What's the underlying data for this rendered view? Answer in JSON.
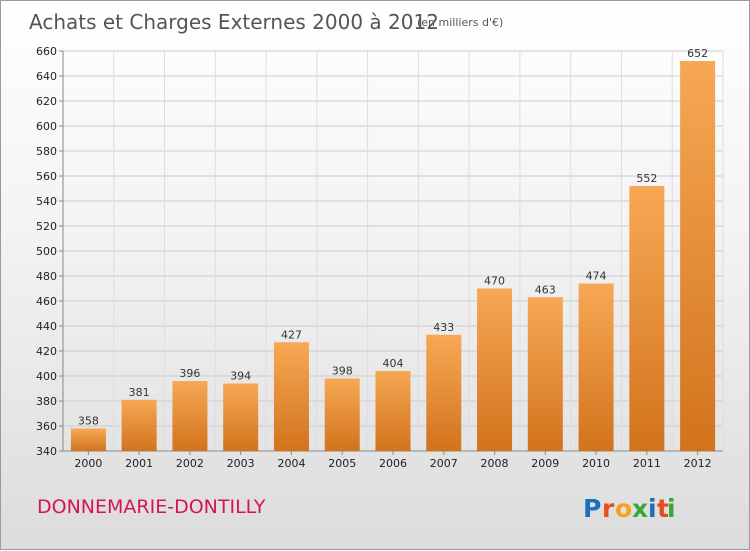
{
  "chart_data": {
    "type": "bar",
    "title": "Achats et Charges Externes 2000 à 2012",
    "subtitle": "(en milliers d'€)",
    "categories": [
      "2000",
      "2001",
      "2002",
      "2003",
      "2004",
      "2005",
      "2006",
      "2007",
      "2008",
      "2009",
      "2010",
      "2011",
      "2012"
    ],
    "values": [
      358,
      381,
      396,
      394,
      427,
      398,
      404,
      433,
      470,
      463,
      474,
      552,
      652
    ],
    "ylim": [
      340,
      660
    ],
    "ytick_step": 20,
    "grid": true,
    "bar_color_light": "#f7a855",
    "bar_color_dark": "#d2731c"
  },
  "footer": {
    "commune": "DONNEMARIE-DONTILLY",
    "logo_letters": [
      "P",
      "r",
      "o",
      "x",
      "i",
      "t",
      "i"
    ],
    "logo_colors": [
      "#1c6fba",
      "#e94b1b",
      "#f4a11d",
      "#3aa635",
      "#1c6fba",
      "#e94b1b",
      "#3aa635"
    ]
  }
}
